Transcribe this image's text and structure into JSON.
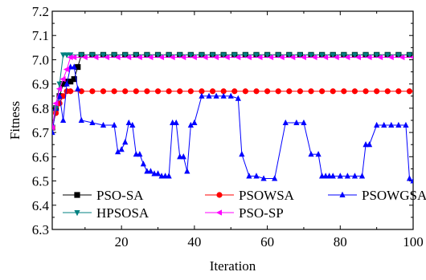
{
  "chart_data": {
    "type": "line",
    "xlabel": "Iteration",
    "ylabel": "Fitness",
    "xlim": [
      1,
      100
    ],
    "ylim": [
      6.3,
      7.2
    ],
    "xticks": [
      20,
      40,
      60,
      80,
      100
    ],
    "yticks": [
      6.3,
      6.4,
      6.5,
      6.6,
      6.7,
      6.8,
      6.9,
      7.0,
      7.1,
      7.2
    ],
    "grid": false,
    "legend_placement": "bottom-left",
    "series": [
      {
        "name": "PSO-SA",
        "color": "#000000",
        "marker": "square",
        "x": [
          1,
          2,
          3,
          4,
          5,
          6,
          7,
          8,
          9,
          100
        ],
        "y": [
          6.72,
          6.8,
          6.85,
          6.9,
          6.91,
          6.91,
          6.92,
          6.97,
          7.02,
          7.02
        ]
      },
      {
        "name": "PSOWSA",
        "color": "#ff0000",
        "marker": "circle",
        "x": [
          1,
          2,
          3,
          4,
          5,
          6,
          100
        ],
        "y": [
          6.72,
          6.78,
          6.82,
          6.85,
          6.87,
          6.87,
          6.87
        ]
      },
      {
        "name": "PSOWGSA",
        "color": "#0000ff",
        "marker": "triangle-up",
        "x": [
          1,
          2,
          3,
          4,
          5,
          6,
          7,
          8,
          9,
          12,
          15,
          18,
          19,
          20,
          21,
          22,
          23,
          24,
          25,
          26,
          27,
          28,
          29,
          30,
          31,
          32,
          33,
          34,
          35,
          36,
          37,
          38,
          39,
          40,
          42,
          44,
          46,
          48,
          50,
          52,
          53,
          55,
          57,
          59,
          62,
          65,
          68,
          70,
          72,
          74,
          75,
          76,
          77,
          78,
          80,
          82,
          84,
          86,
          87,
          88,
          90,
          92,
          94,
          96,
          98,
          99,
          100
        ],
        "y": [
          6.7,
          6.8,
          6.85,
          6.75,
          6.9,
          6.97,
          6.97,
          6.88,
          6.75,
          6.74,
          6.73,
          6.73,
          6.62,
          6.63,
          6.66,
          6.74,
          6.73,
          6.61,
          6.61,
          6.57,
          6.54,
          6.54,
          6.53,
          6.53,
          6.52,
          6.52,
          6.52,
          6.74,
          6.74,
          6.6,
          6.6,
          6.54,
          6.73,
          6.74,
          6.85,
          6.85,
          6.85,
          6.85,
          6.85,
          6.84,
          6.61,
          6.52,
          6.52,
          6.51,
          6.51,
          6.74,
          6.74,
          6.74,
          6.61,
          6.61,
          6.52,
          6.52,
          6.52,
          6.52,
          6.52,
          6.52,
          6.52,
          6.52,
          6.65,
          6.65,
          6.73,
          6.73,
          6.73,
          6.73,
          6.73,
          6.51,
          6.5
        ]
      },
      {
        "name": "HPSOSA",
        "color": "#008080",
        "marker": "triangle-down",
        "x": [
          1,
          2,
          3,
          4,
          5,
          6,
          100
        ],
        "y": [
          6.72,
          6.8,
          6.9,
          7.02,
          7.02,
          7.02,
          7.02
        ]
      },
      {
        "name": "PSO-SP",
        "color": "#ff00ff",
        "marker": "triangle-left",
        "x": [
          1,
          2,
          3,
          4,
          5,
          6,
          7,
          100
        ],
        "y": [
          6.72,
          6.82,
          6.88,
          6.92,
          6.96,
          7.01,
          7.01,
          7.01
        ]
      }
    ]
  }
}
